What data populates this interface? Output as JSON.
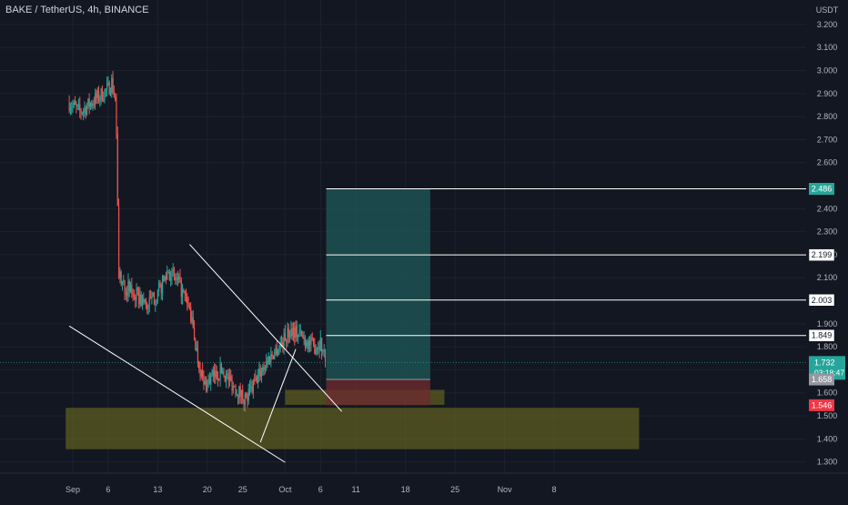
{
  "header": {
    "title": "BAKE / TetherUS, 4h, BINANCE"
  },
  "colors": {
    "background": "#131722",
    "up": "#26a69a",
    "down": "#ef5350",
    "grid": "#1e222d",
    "axis_text": "#b2b5be",
    "profit_zone": "#1f5c5a",
    "loss_zone": "#6b2a2f",
    "demand_zone": "#6b6b1e",
    "level_line": "#ffffff"
  },
  "chart_data": {
    "type": "candlestick",
    "title": "BAKE / TetherUS, 4h, BINANCE",
    "y_unit_label": "USDT",
    "ylim": [
      1.255,
      3.255
    ],
    "y_ticks": [
      "3.200",
      "3.100",
      "3.000",
      "2.900",
      "2.800",
      "2.700",
      "2.600",
      "2.400",
      "2.300",
      "2.200",
      "2.100",
      "1.900",
      "1.800",
      "1.700",
      "1.600",
      "1.500",
      "1.400",
      "1.300"
    ],
    "x_ticks": [
      {
        "label": "Sep",
        "pos": 0
      },
      {
        "label": "6",
        "pos": 5
      },
      {
        "label": "13",
        "pos": 12
      },
      {
        "label": "20",
        "pos": 19
      },
      {
        "label": "25",
        "pos": 24
      },
      {
        "label": "Oct",
        "pos": 30
      },
      {
        "label": "6",
        "pos": 35
      },
      {
        "label": "11",
        "pos": 40
      },
      {
        "label": "18",
        "pos": 47
      },
      {
        "label": "25",
        "pos": 54
      },
      {
        "label": "Nov",
        "pos": 61
      },
      {
        "label": "8",
        "pos": 68
      }
    ],
    "price_path": [
      [
        -0.5,
        2.86
      ],
      [
        1.0,
        2.82
      ],
      [
        3.0,
        2.87
      ],
      [
        5.0,
        2.92
      ],
      [
        5.5,
        2.95
      ],
      [
        6.1,
        2.85
      ],
      [
        6.5,
        2.1
      ],
      [
        7.5,
        2.06
      ],
      [
        9.0,
        2.02
      ],
      [
        10.5,
        1.98
      ],
      [
        12.0,
        2.03
      ],
      [
        13.5,
        2.13
      ],
      [
        15.0,
        2.07
      ],
      [
        16.5,
        1.96
      ],
      [
        17.5,
        1.78
      ],
      [
        18.5,
        1.63
      ],
      [
        19.5,
        1.66
      ],
      [
        21.0,
        1.7
      ],
      [
        23.0,
        1.62
      ],
      [
        24.5,
        1.57
      ],
      [
        25.5,
        1.63
      ],
      [
        27.0,
        1.72
      ],
      [
        28.5,
        1.78
      ],
      [
        30.0,
        1.84
      ],
      [
        31.0,
        1.88
      ],
      [
        32.5,
        1.84
      ],
      [
        34.0,
        1.8
      ],
      [
        35.0,
        1.82
      ],
      [
        35.8,
        1.73
      ]
    ],
    "last_candle_pos": 35.8,
    "levels": [
      {
        "label": "2.486",
        "value": 2.486,
        "from_pos": 35.8,
        "to_pos": 62,
        "label_color": "#ffffff",
        "label_text_color": "#131722"
      },
      {
        "label": "2.199",
        "value": 2.199,
        "from_pos": 35.8,
        "to_pos": 62,
        "label_color": "#ffffff",
        "label_text_color": "#131722"
      },
      {
        "label": "2.003",
        "value": 2.003,
        "from_pos": 35.8,
        "to_pos": 62,
        "label_color": "#ffffff",
        "label_text_color": "#131722"
      },
      {
        "label": "1.849",
        "value": 1.849,
        "from_pos": 35.8,
        "to_pos": 62,
        "label_color": "#ffffff",
        "label_text_color": "#131722"
      }
    ],
    "price_tags": [
      {
        "label": "2.486",
        "value": 2.486,
        "bg": "#26a69a",
        "fg": "#ffffff"
      },
      {
        "label": "1.732",
        "sub": "03:18:47",
        "value": 1.732,
        "bg": "#26a69a",
        "fg": "#ffffff"
      },
      {
        "label": "1.658",
        "value": 1.658,
        "bg": "#9598a1",
        "fg": "#ffffff"
      },
      {
        "label": "1.546",
        "value": 1.546,
        "bg": "#f23645",
        "fg": "#ffffff"
      }
    ],
    "position": {
      "entry": 1.658,
      "target": 2.486,
      "stop": 1.546,
      "from_pos": 35.8,
      "to_pos": 50.5
    },
    "zones": [
      {
        "name": "demand-zone-wide",
        "y_top": 1.535,
        "y_bottom": 1.355,
        "from_pos": -1,
        "to_pos": 80
      },
      {
        "name": "demand-zone-small",
        "y_top": 1.613,
        "y_bottom": 1.548,
        "from_pos": 30,
        "to_pos": 52.5
      }
    ],
    "trendlines": [
      {
        "name": "channel-upper-line",
        "from": [
          16.5,
          2.245
        ],
        "to": [
          38.0,
          1.519
        ]
      },
      {
        "name": "channel-lower-line",
        "from": [
          -0.5,
          1.89
        ],
        "to": [
          30.0,
          1.298
        ]
      },
      {
        "name": "breakout-support-line",
        "from": [
          26.5,
          1.385
        ],
        "to": [
          31.5,
          1.79
        ]
      }
    ]
  }
}
